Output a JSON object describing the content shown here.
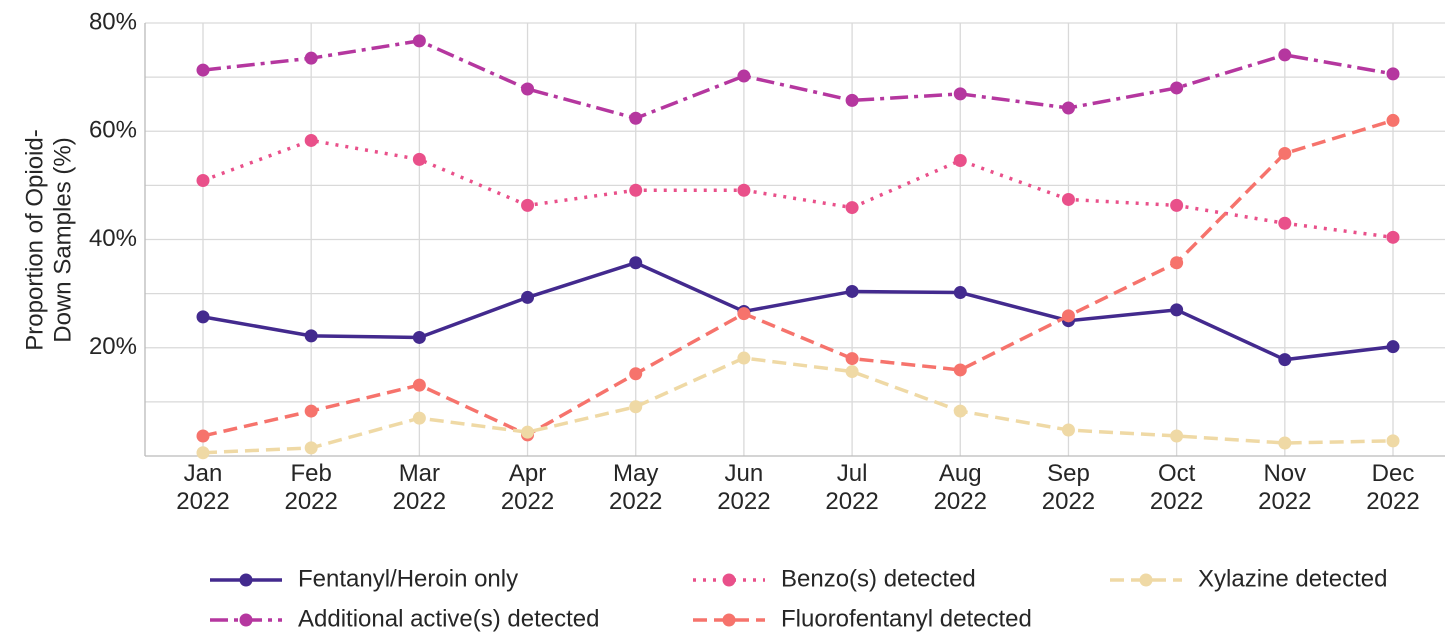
{
  "chart_data": {
    "type": "line",
    "y_label": [
      "Proportion of Opioid-",
      "Down Samples (%)"
    ],
    "categories": [
      "Jan 2022",
      "Feb 2022",
      "Mar 2022",
      "Apr 2022",
      "May 2022",
      "Jun 2022",
      "Jul 2022",
      "Aug 2022",
      "Sep 2022",
      "Oct 2022",
      "Nov 2022",
      "Dec 2022"
    ],
    "ylim": [
      0,
      80
    ],
    "yticks": [
      {
        "value": 20,
        "label": "20%"
      },
      {
        "value": 40,
        "label": "40%"
      },
      {
        "value": 60,
        "label": "60%"
      },
      {
        "value": 80,
        "label": "80%"
      }
    ],
    "y_minor_gridlines": [
      10,
      30,
      50,
      70
    ],
    "grid": true,
    "legend_position": "bottom",
    "series": [
      {
        "name": "Fentanyl/Heroin only",
        "color": "#432a8e",
        "dash": "solid",
        "values": [
          25.7,
          22.2,
          21.9,
          29.3,
          35.7,
          26.7,
          30.4,
          30.2,
          25.0,
          27.0,
          17.8,
          20.2
        ]
      },
      {
        "name": "Additional active(s) detected",
        "color": "#b5379f",
        "dash": "dashdot",
        "values": [
          71.3,
          73.5,
          76.7,
          67.8,
          62.4,
          70.2,
          65.7,
          66.9,
          64.3,
          68.0,
          74.1,
          70.6
        ]
      },
      {
        "name": "Benzo(s) detected",
        "color": "#e9508a",
        "dash": "dotted",
        "values": [
          50.9,
          58.3,
          54.8,
          46.3,
          49.1,
          49.1,
          45.9,
          54.6,
          47.4,
          46.3,
          43.0,
          40.4
        ]
      },
      {
        "name": "Fluorofentanyl detected",
        "color": "#f6736c",
        "dash": "dashed",
        "values": [
          3.7,
          8.3,
          13.1,
          3.9,
          15.2,
          26.3,
          18.0,
          15.9,
          25.9,
          35.7,
          55.9,
          62.0
        ]
      },
      {
        "name": "Xylazine detected",
        "color": "#efd9a5",
        "dash": "dashed",
        "values": [
          0.6,
          1.5,
          7.0,
          4.4,
          9.1,
          18.1,
          15.6,
          8.3,
          4.8,
          3.7,
          2.4,
          2.8
        ]
      }
    ]
  }
}
